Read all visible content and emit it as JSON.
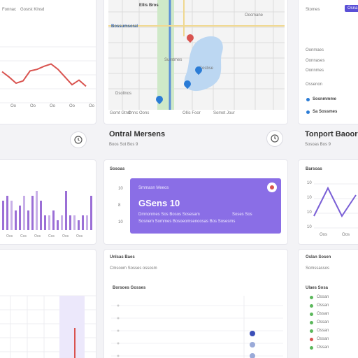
{
  "top_left": {
    "label_a": "Fonnac",
    "label_b": "Gosrst Klnsd"
  },
  "map": {
    "street_top": "Ellis Bros",
    "street_left": "Bossumsoral",
    "label_center": "Sumtmes",
    "label_right_top": "Oocmane",
    "label_lake": "Sosbse",
    "label_bottom": "Dsollnos",
    "footer": [
      "Gomt Gtnd",
      "Onnc Oons",
      "Ollic Foor",
      "Somet Jour"
    ]
  },
  "right_panel": {
    "top_label": "Stomes",
    "badge": "Osna",
    "items": [
      "Oonmaes",
      "Oonnases",
      "Oonnmes",
      "Ossenon"
    ],
    "list": [
      {
        "label": "Sosnmmme",
        "color": "#2b7cd6"
      },
      {
        "label": "Sa Sossmes",
        "color": "#2b7cd6"
      }
    ]
  },
  "card_ontral": {
    "title": "Ontral Mersens",
    "subtitle": "Boos Sot Bos 9"
  },
  "card_tonport": {
    "title": "Tonport Baoor",
    "subtitle": "Sosoas Bos 9"
  },
  "center_panel": {
    "heading": "Sosoas",
    "row_labels": [
      "10",
      "8",
      "10"
    ],
    "purple_card": {
      "top_label": "Smmasn Meeos",
      "value": "GSens 10",
      "line1": "Dmnonmes Sos Bosos Sosesam",
      "line1_right": "Soses Sos",
      "line2": "Sosnem Sommes Bosoeomsenoosas Bos Sosesms"
    }
  },
  "right_chart": {
    "title": "Barsoas",
    "y_ticks": [
      "10",
      "10",
      "10",
      "10"
    ],
    "x_ticks": [
      "Oos",
      "Oos"
    ]
  },
  "bar_chart": {
    "type": "bar",
    "categories": [
      "Oos",
      "Cos",
      "Oos",
      "Cos",
      "Oos",
      "Oos"
    ],
    "values": [
      6,
      7,
      6,
      4,
      5,
      7,
      4,
      7,
      8,
      6,
      3,
      3,
      4,
      2,
      3,
      8,
      3,
      3,
      2,
      3,
      3,
      7
    ],
    "color": "#9b6fd6"
  },
  "line_chart_top": {
    "type": "line",
    "x": [
      0,
      1,
      2,
      3,
      4,
      5,
      6,
      7,
      8,
      9,
      10,
      11,
      12
    ],
    "values": [
      4.5,
      3.8,
      3.0,
      3.3,
      4.6,
      4.8,
      5.2,
      5.5,
      4.8,
      3.8,
      2.8,
      3.4,
      2.6
    ],
    "x_ticks": [
      "Oo",
      "Oo",
      "Oo",
      "Oo",
      "Oo"
    ],
    "color": "#d9534f"
  },
  "line_chart_right": {
    "type": "line",
    "x": [
      0,
      1,
      2,
      3
    ],
    "values": [
      2,
      6,
      2,
      5
    ],
    "color": "#7a5fd6"
  },
  "bottom_mid": {
    "title": "Unlsas Baes",
    "subtitle": "Cmsoom Sosses ossosm",
    "section": "Borsoes Gosses"
  },
  "bottom_right": {
    "title": "Oslan Sosen",
    "subtitle": "Somssassos",
    "section": "Ulaes Sosa"
  },
  "bottom_scatter": {
    "type": "scatter",
    "points": [
      {
        "y": 4,
        "color": "#3b4fb8"
      },
      {
        "y": 3,
        "color": "#9aaad8"
      },
      {
        "y": 2,
        "color": "#9aaad8"
      },
      {
        "y": 1,
        "color": "#c8d0ea"
      }
    ]
  },
  "bottom_right_list": {
    "rows": [
      {
        "color": "#5cb85c",
        "label": "Ossan"
      },
      {
        "color": "#5cb85c",
        "label": "Ossan"
      },
      {
        "color": "#5cb85c",
        "label": "Ossan"
      },
      {
        "color": "#5cb85c",
        "label": "Ossan"
      },
      {
        "color": "#5cb85c",
        "label": "Ossan"
      },
      {
        "color": "#d9534f",
        "label": "Ossan"
      },
      {
        "color": "#5cb85c",
        "label": "Ossan"
      }
    ]
  }
}
